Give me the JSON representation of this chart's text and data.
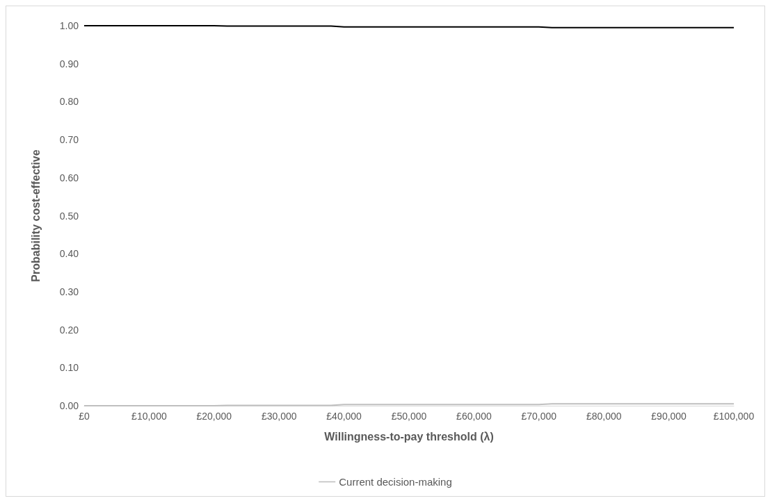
{
  "chart_data": {
    "type": "line",
    "xlabel": "Willingness-to-pay threshold (λ)",
    "ylabel": "Probability cost-effective",
    "x": [
      0,
      10000,
      20000,
      22000,
      38000,
      40000,
      70000,
      72000,
      100000
    ],
    "series": [
      {
        "color": "#000000",
        "values": [
          1,
          1,
          1,
          0.999,
          0.999,
          0.997,
          0.997,
          0.995,
          0.995
        ]
      },
      {
        "name": "Current decision-making",
        "color": "#bfbfbf",
        "values": [
          0,
          0,
          0,
          0.001,
          0.001,
          0.003,
          0.003,
          0.005,
          0.005
        ]
      }
    ],
    "xlim": [
      0,
      100000
    ],
    "xticks": [
      {
        "value": 0,
        "label": "£0"
      },
      {
        "value": 10000,
        "label": "£10,000"
      },
      {
        "value": 20000,
        "label": "£20,000"
      },
      {
        "value": 30000,
        "label": "£30,000"
      },
      {
        "value": 40000,
        "label": "£40,000"
      },
      {
        "value": 50000,
        "label": "£50,000"
      },
      {
        "value": 60000,
        "label": "£60,000"
      },
      {
        "value": 70000,
        "label": "£70,000"
      },
      {
        "value": 80000,
        "label": "£80,000"
      },
      {
        "value": 90000,
        "label": "£90,000"
      },
      {
        "value": 100000,
        "label": "£100,000"
      }
    ],
    "ylim": [
      0,
      1
    ],
    "yticks": [
      {
        "value": 0,
        "label": "0.00"
      },
      {
        "value": 0.1,
        "label": "0.10"
      },
      {
        "value": 0.2,
        "label": "0.20"
      },
      {
        "value": 0.3,
        "label": "0.30"
      },
      {
        "value": 0.4,
        "label": "0.40"
      },
      {
        "value": 0.5,
        "label": "0.50"
      },
      {
        "value": 0.6,
        "label": "0.60"
      },
      {
        "value": 0.7,
        "label": "0.70"
      },
      {
        "value": 0.8,
        "label": "0.80"
      },
      {
        "value": 0.9,
        "label": "0.90"
      },
      {
        "value": 1,
        "label": "1.00"
      }
    ],
    "grid": false,
    "legend": "bottom",
    "marker": "none",
    "line_style": "solid"
  }
}
